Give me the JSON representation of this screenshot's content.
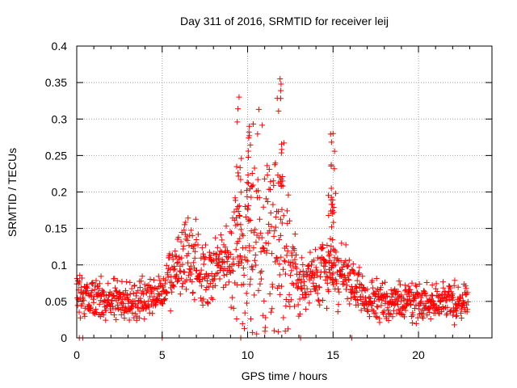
{
  "chart_data": {
    "type": "scatter",
    "title": "Day 311 of 2016, SRMTID for receiver leij",
    "xlabel": "GPS time / hours",
    "ylabel": "SRMTID / TECUs",
    "xlim": [
      0,
      24.3
    ],
    "ylim": [
      0,
      0.4
    ],
    "xticks": [
      0,
      5,
      10,
      15,
      20
    ],
    "xtick_labels": [
      "0",
      "5",
      "10",
      "15",
      "20"
    ],
    "yticks": [
      0,
      0.05,
      0.1,
      0.15,
      0.2,
      0.25,
      0.3,
      0.35,
      0.4
    ],
    "ytick_labels": [
      "0",
      "0.05",
      "0.1",
      "0.15",
      "0.2",
      "0.25",
      "0.3",
      "0.35",
      "0.4"
    ],
    "grid": true,
    "marker": "+",
    "color": "#ff0000",
    "series_profile": {
      "description_points": [
        {
          "hours": 0,
          "typical_value": 0.055
        },
        {
          "hours": 3,
          "typical_value": 0.05
        },
        {
          "hours": 5,
          "typical_value": 0.06
        },
        {
          "hours": 6.5,
          "typical_value": 0.12
        },
        {
          "hours": 7.5,
          "typical_value": 0.08
        },
        {
          "hours": 9.5,
          "typical_value": 0.12
        },
        {
          "hours": 10.5,
          "typical_value": 0.14
        },
        {
          "hours": 12,
          "typical_value": 0.15
        },
        {
          "hours": 13,
          "typical_value": 0.07
        },
        {
          "hours": 15,
          "typical_value": 0.1
        },
        {
          "hours": 17,
          "typical_value": 0.05
        },
        {
          "hours": 22.8,
          "typical_value": 0.05
        }
      ],
      "notable_peaks": [
        {
          "hours": 9.5,
          "value": 0.33
        },
        {
          "hours": 10.1,
          "value": 0.29
        },
        {
          "hours": 11.9,
          "value": 0.355
        },
        {
          "hours": 15.0,
          "value": 0.28
        },
        {
          "hours": 14.9,
          "value": 0.205
        }
      ],
      "data_end_hours": 22.9
    }
  }
}
